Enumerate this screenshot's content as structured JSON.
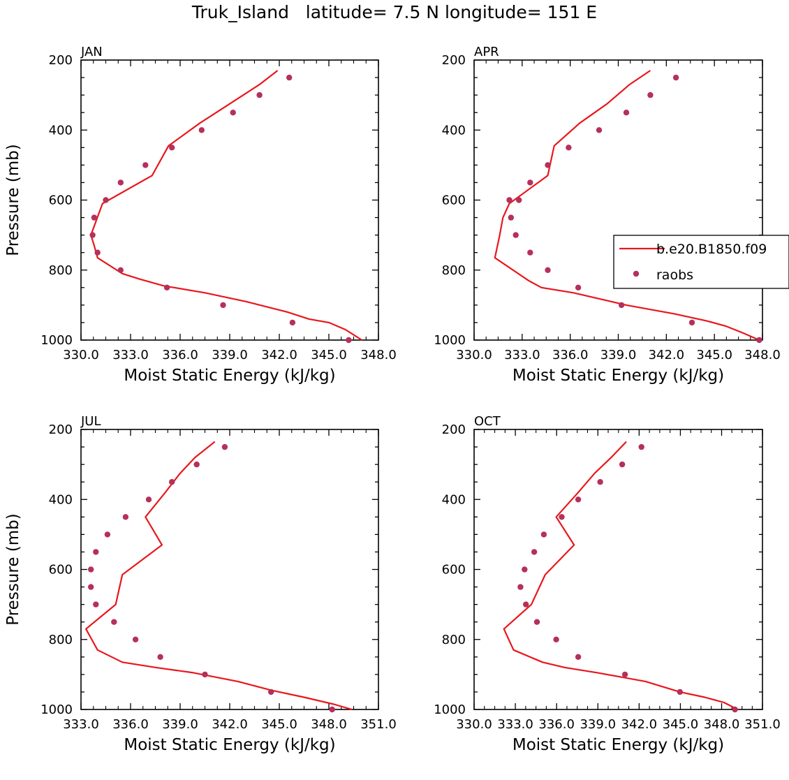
{
  "title": "Truk_Island   latitude= 7.5 N longitude= 151 E",
  "legend": {
    "entries": [
      {
        "label": "b.e20.B1850.f09",
        "kind": "line",
        "color": "#e8171c"
      },
      {
        "label": "raobs",
        "kind": "marker",
        "color": "#b5305a"
      }
    ]
  },
  "colors": {
    "model": "#e8171c",
    "obs": "#b5305a"
  },
  "chart_data": [
    {
      "type": "line",
      "panel": "JAN",
      "xlabel": "Moist Static Energy (kJ/kg)",
      "ylabel": "Pressure (mb)",
      "xlim": [
        330,
        348
      ],
      "ylim": [
        1000,
        200
      ],
      "xticks": [
        330,
        333,
        336,
        339,
        342,
        345,
        348
      ],
      "xtick_labels": [
        "330.0",
        "333.0",
        "336.0",
        "339.0",
        "342.0",
        "345.0",
        "348.0"
      ],
      "yticks": [
        200,
        400,
        600,
        800,
        1000
      ],
      "ytick_labels": [
        "200",
        "400",
        "600",
        "800",
        "1000"
      ],
      "series": [
        {
          "name": "b.e20.B1850.f09",
          "x": [
            347.0,
            346.0,
            345.0,
            343.8,
            342.5,
            340.0,
            337.5,
            335.0,
            333.5,
            332.5,
            331.0,
            330.8,
            330.6,
            331.3,
            334.3,
            335.3,
            337.2,
            339.0,
            340.8,
            341.9
          ],
          "y": [
            1000,
            970,
            950,
            940,
            920,
            890,
            865,
            845,
            825,
            810,
            765,
            730,
            700,
            610,
            530,
            445,
            380,
            325,
            270,
            230
          ]
        },
        {
          "name": "raobs",
          "x": [
            346.2,
            342.8,
            338.6,
            335.2,
            332.4,
            331.0,
            330.7,
            330.8,
            331.5,
            332.4,
            333.9,
            335.5,
            337.3,
            339.2,
            340.8,
            342.6
          ],
          "y": [
            1000,
            950,
            900,
            850,
            800,
            750,
            700,
            650,
            600,
            550,
            500,
            450,
            400,
            350,
            300,
            250
          ]
        }
      ]
    },
    {
      "type": "line",
      "panel": "APR",
      "xlabel": "Moist Static Energy (kJ/kg)",
      "ylabel": "",
      "xlim": [
        330,
        348
      ],
      "ylim": [
        1000,
        200
      ],
      "xticks": [
        330,
        333,
        336,
        339,
        342,
        345,
        348
      ],
      "xtick_labels": [
        "330.0",
        "333.0",
        "336.0",
        "339.0",
        "342.0",
        "345.0",
        "348.0"
      ],
      "yticks": [
        200,
        400,
        600,
        800,
        1000
      ],
      "ytick_labels": [
        "200",
        "400",
        "600",
        "800",
        "1000"
      ],
      "series": [
        {
          "name": "b.e20.B1850.f09",
          "x": [
            347.8,
            346.8,
            345.7,
            344.5,
            342.5,
            339.5,
            336.2,
            334.2,
            333.4,
            331.3,
            331.6,
            331.8,
            332.2,
            334.6,
            335.0,
            336.6,
            338.3,
            339.7,
            341.0
          ],
          "y": [
            1000,
            980,
            960,
            945,
            925,
            900,
            865,
            850,
            830,
            765,
            700,
            650,
            610,
            530,
            445,
            380,
            325,
            270,
            230
          ]
        },
        {
          "name": "raobs",
          "x": [
            347.8,
            343.6,
            339.2,
            336.5,
            334.6,
            333.5,
            332.6,
            332.3,
            332.2,
            332.8,
            333.5,
            334.6,
            335.9,
            337.8,
            339.5,
            341.0,
            342.6
          ],
          "y": [
            1000,
            950,
            900,
            850,
            800,
            750,
            700,
            650,
            600,
            600,
            550,
            500,
            450,
            400,
            350,
            300,
            250
          ]
        }
      ]
    },
    {
      "type": "line",
      "panel": "JUL",
      "xlabel": "Moist Static Energy (kJ/kg)",
      "ylabel": "Pressure (mb)",
      "xlim": [
        333,
        351
      ],
      "ylim": [
        1000,
        200
      ],
      "xticks": [
        333,
        336,
        339,
        342,
        345,
        348,
        351
      ],
      "xtick_labels": [
        "333.0",
        "336.0",
        "339.0",
        "342.0",
        "345.0",
        "348.0",
        "351.0"
      ],
      "yticks": [
        200,
        400,
        600,
        800,
        1000
      ],
      "ytick_labels": [
        "200",
        "400",
        "600",
        "800",
        "1000"
      ],
      "series": [
        {
          "name": "b.e20.B1850.f09",
          "x": [
            349.4,
            348.3,
            346.5,
            344.5,
            342.5,
            339.8,
            337.5,
            335.5,
            334.0,
            333.3,
            335.1,
            335.5,
            337.9,
            336.9,
            338.1,
            339.0,
            339.9,
            341.1
          ],
          "y": [
            1000,
            985,
            965,
            945,
            920,
            895,
            880,
            865,
            830,
            770,
            700,
            615,
            530,
            450,
            380,
            325,
            280,
            235
          ]
        },
        {
          "name": "raobs",
          "x": [
            348.2,
            344.5,
            340.5,
            337.8,
            336.3,
            335.0,
            333.9,
            333.6,
            333.6,
            333.9,
            334.6,
            335.7,
            337.1,
            338.5,
            340.0,
            341.7
          ],
          "y": [
            1000,
            950,
            900,
            850,
            800,
            750,
            700,
            650,
            600,
            550,
            500,
            450,
            400,
            350,
            300,
            250
          ]
        }
      ]
    },
    {
      "type": "line",
      "panel": "OCT",
      "xlabel": "Moist Static Energy (kJ/kg)",
      "ylabel": "",
      "xlim": [
        330.03,
        351
      ],
      "ylim": [
        1000,
        200
      ],
      "xticks": [
        330.03,
        333.03,
        336.03,
        339.03,
        342.03,
        345.03,
        348.03,
        351.0
      ],
      "xtick_labels": [
        "330.0",
        "333.0",
        "336.0",
        "339.0",
        "342.0",
        "345.0",
        "348.0",
        "351.0"
      ],
      "yticks": [
        200,
        400,
        600,
        800,
        1000
      ],
      "ytick_labels": [
        "200",
        "400",
        "600",
        "800",
        "1000"
      ],
      "series": [
        {
          "name": "b.e20.B1850.f09",
          "x": [
            349.2,
            348.2,
            346.8,
            345.0,
            342.5,
            339.0,
            336.6,
            335.0,
            332.9,
            332.2,
            334.2,
            335.2,
            337.3,
            336.0,
            337.6,
            338.8,
            340.0,
            341.1
          ],
          "y": [
            1000,
            980,
            965,
            950,
            920,
            895,
            880,
            865,
            830,
            770,
            700,
            615,
            530,
            450,
            380,
            325,
            280,
            235
          ]
        },
        {
          "name": "raobs",
          "x": [
            349.0,
            345.0,
            341.0,
            337.6,
            336.0,
            334.6,
            333.8,
            333.4,
            333.7,
            334.4,
            335.1,
            336.4,
            337.6,
            339.2,
            340.8,
            342.2
          ],
          "y": [
            1000,
            950,
            900,
            850,
            800,
            750,
            700,
            650,
            600,
            550,
            500,
            450,
            400,
            350,
            300,
            250
          ]
        }
      ]
    }
  ]
}
